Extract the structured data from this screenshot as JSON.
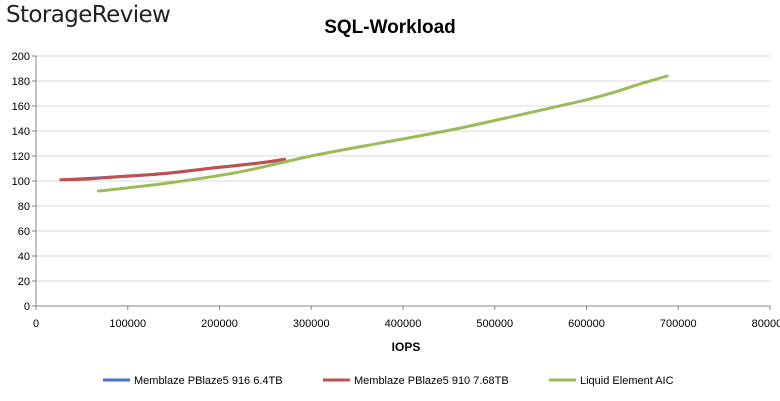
{
  "logo": {
    "part1": "Storage",
    "part2": "Review"
  },
  "chart_data": {
    "type": "line",
    "title": "SQL-Workload",
    "xlabel": "IOPS",
    "ylabel": "",
    "xlim": [
      0,
      800000
    ],
    "ylim": [
      0,
      200
    ],
    "xticks": [
      0,
      100000,
      200000,
      300000,
      400000,
      500000,
      600000,
      700000,
      800000
    ],
    "yticks": [
      0,
      20,
      40,
      60,
      80,
      100,
      120,
      140,
      160,
      180,
      200
    ],
    "grid": "horizontal",
    "legend_position": "bottom",
    "series": [
      {
        "name": "Memblaze PBlaze5 916 6.4TB",
        "color": "#4472C4",
        "points": [
          [
            29000,
            101
          ],
          [
            80000,
            103
          ],
          [
            140000,
            106
          ],
          [
            200000,
            111
          ],
          [
            250000,
            115
          ],
          [
            270000,
            117
          ]
        ]
      },
      {
        "name": "Memblaze PBlaze5 910 7.68TB",
        "color": "#C0504D",
        "points": [
          [
            27000,
            101
          ],
          [
            55000,
            101.5
          ],
          [
            90000,
            103.5
          ],
          [
            140000,
            106
          ],
          [
            200000,
            111
          ],
          [
            240000,
            114
          ],
          [
            271000,
            117.5
          ]
        ]
      },
      {
        "name": "Liquid Element AIC",
        "color": "#9BBB59",
        "points": [
          [
            68000,
            92
          ],
          [
            140000,
            98
          ],
          [
            220000,
            107
          ],
          [
            300000,
            120
          ],
          [
            380000,
            131
          ],
          [
            460000,
            142
          ],
          [
            540000,
            155
          ],
          [
            600000,
            165
          ],
          [
            630000,
            171
          ],
          [
            660000,
            178
          ],
          [
            688000,
            184
          ]
        ]
      }
    ]
  }
}
